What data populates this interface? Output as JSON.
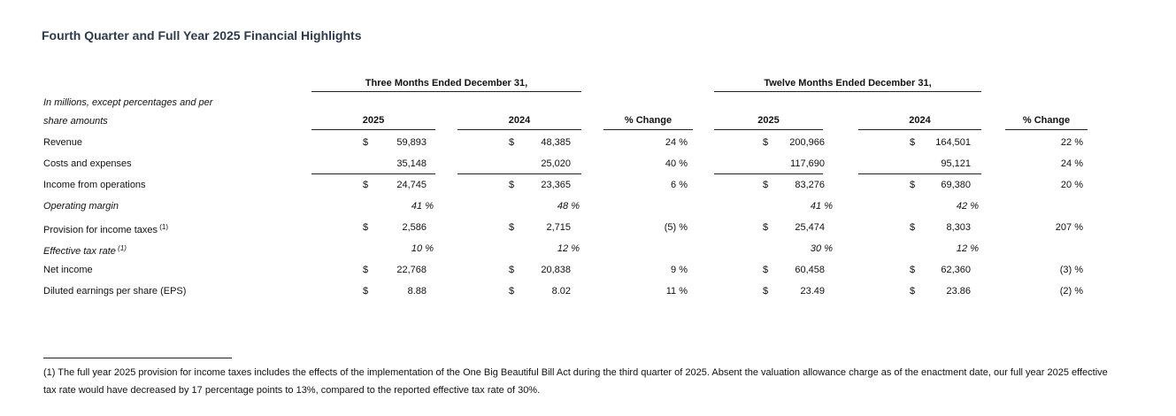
{
  "header": {
    "title": "Fourth Quarter and Full Year 2025 Financial Highlights"
  },
  "table": {
    "groups": [
      "Three Months Ended December 31,",
      "Twelve Months Ended December 31,"
    ],
    "unit_note": [
      "In millions, except percentages and per",
      "share amounts"
    ],
    "columns": [
      "2025",
      "2024",
      "% Change",
      "2025",
      "2024",
      "% Change"
    ],
    "rows": [
      {
        "label": "Revenue",
        "cells": [
          {
            "currency": "$",
            "value": "59,893"
          },
          {
            "currency": "$",
            "value": "48,385"
          },
          "24 %",
          {
            "currency": "$",
            "value": "200,966"
          },
          {
            "currency": "$",
            "value": "164,501"
          },
          "22 %"
        ]
      },
      {
        "label": "Costs and expenses",
        "underline": true,
        "cells": [
          {
            "value": "35,148"
          },
          {
            "value": "25,020"
          },
          "40 %",
          {
            "value": "117,690"
          },
          {
            "value": "95,121"
          },
          "24 %"
        ]
      },
      {
        "label": "Income from operations",
        "cells": [
          {
            "currency": "$",
            "value": "24,745"
          },
          {
            "currency": "$",
            "value": "23,365"
          },
          "6 %",
          {
            "currency": "$",
            "value": "83,276"
          },
          {
            "currency": "$",
            "value": "69,380"
          },
          "20 %"
        ]
      },
      {
        "label": "Operating margin",
        "italic": true,
        "cells": [
          {
            "value": "41 %"
          },
          {
            "value": "48 %"
          },
          null,
          {
            "value": "41 %"
          },
          {
            "value": "42 %"
          },
          null
        ]
      },
      {
        "label": "Provision for income taxes",
        "note": "(1)",
        "cells": [
          {
            "currency": "$",
            "value": "2,586"
          },
          {
            "currency": "$",
            "value": "2,715"
          },
          "(5) %",
          {
            "currency": "$",
            "value": "25,474"
          },
          {
            "currency": "$",
            "value": "8,303"
          },
          "207 %"
        ]
      },
      {
        "label": "Effective tax rate",
        "note": "(1)",
        "italic": true,
        "cells": [
          {
            "value": "10 %"
          },
          {
            "value": "12 %"
          },
          null,
          {
            "value": "30 %"
          },
          {
            "value": "12 %"
          },
          null
        ]
      },
      {
        "label": "Net income",
        "cells": [
          {
            "currency": "$",
            "value": "22,768"
          },
          {
            "currency": "$",
            "value": "20,838"
          },
          "9 %",
          {
            "currency": "$",
            "value": "60,458"
          },
          {
            "currency": "$",
            "value": "62,360"
          },
          "(3) %"
        ]
      },
      {
        "label": "Diluted earnings per share (EPS)",
        "cells": [
          {
            "currency": "$",
            "value": "8.88"
          },
          {
            "currency": "$",
            "value": "8.02"
          },
          "11 %",
          {
            "currency": "$",
            "value": "23.49"
          },
          {
            "currency": "$",
            "value": "23.86"
          },
          "(2) %"
        ]
      }
    ]
  },
  "footnote": {
    "lines": [
      "(1) The full year 2025 provision for income taxes includes the effects of the implementation of the One Big Beautiful Bill Act during the third quarter of 2025. Absent the valuation allowance charge as of the enactment date, our full year 2025 effective",
      "tax rate would have decreased by 17 percentage points to 13%, compared to the reported effective tax rate of 30%."
    ]
  }
}
